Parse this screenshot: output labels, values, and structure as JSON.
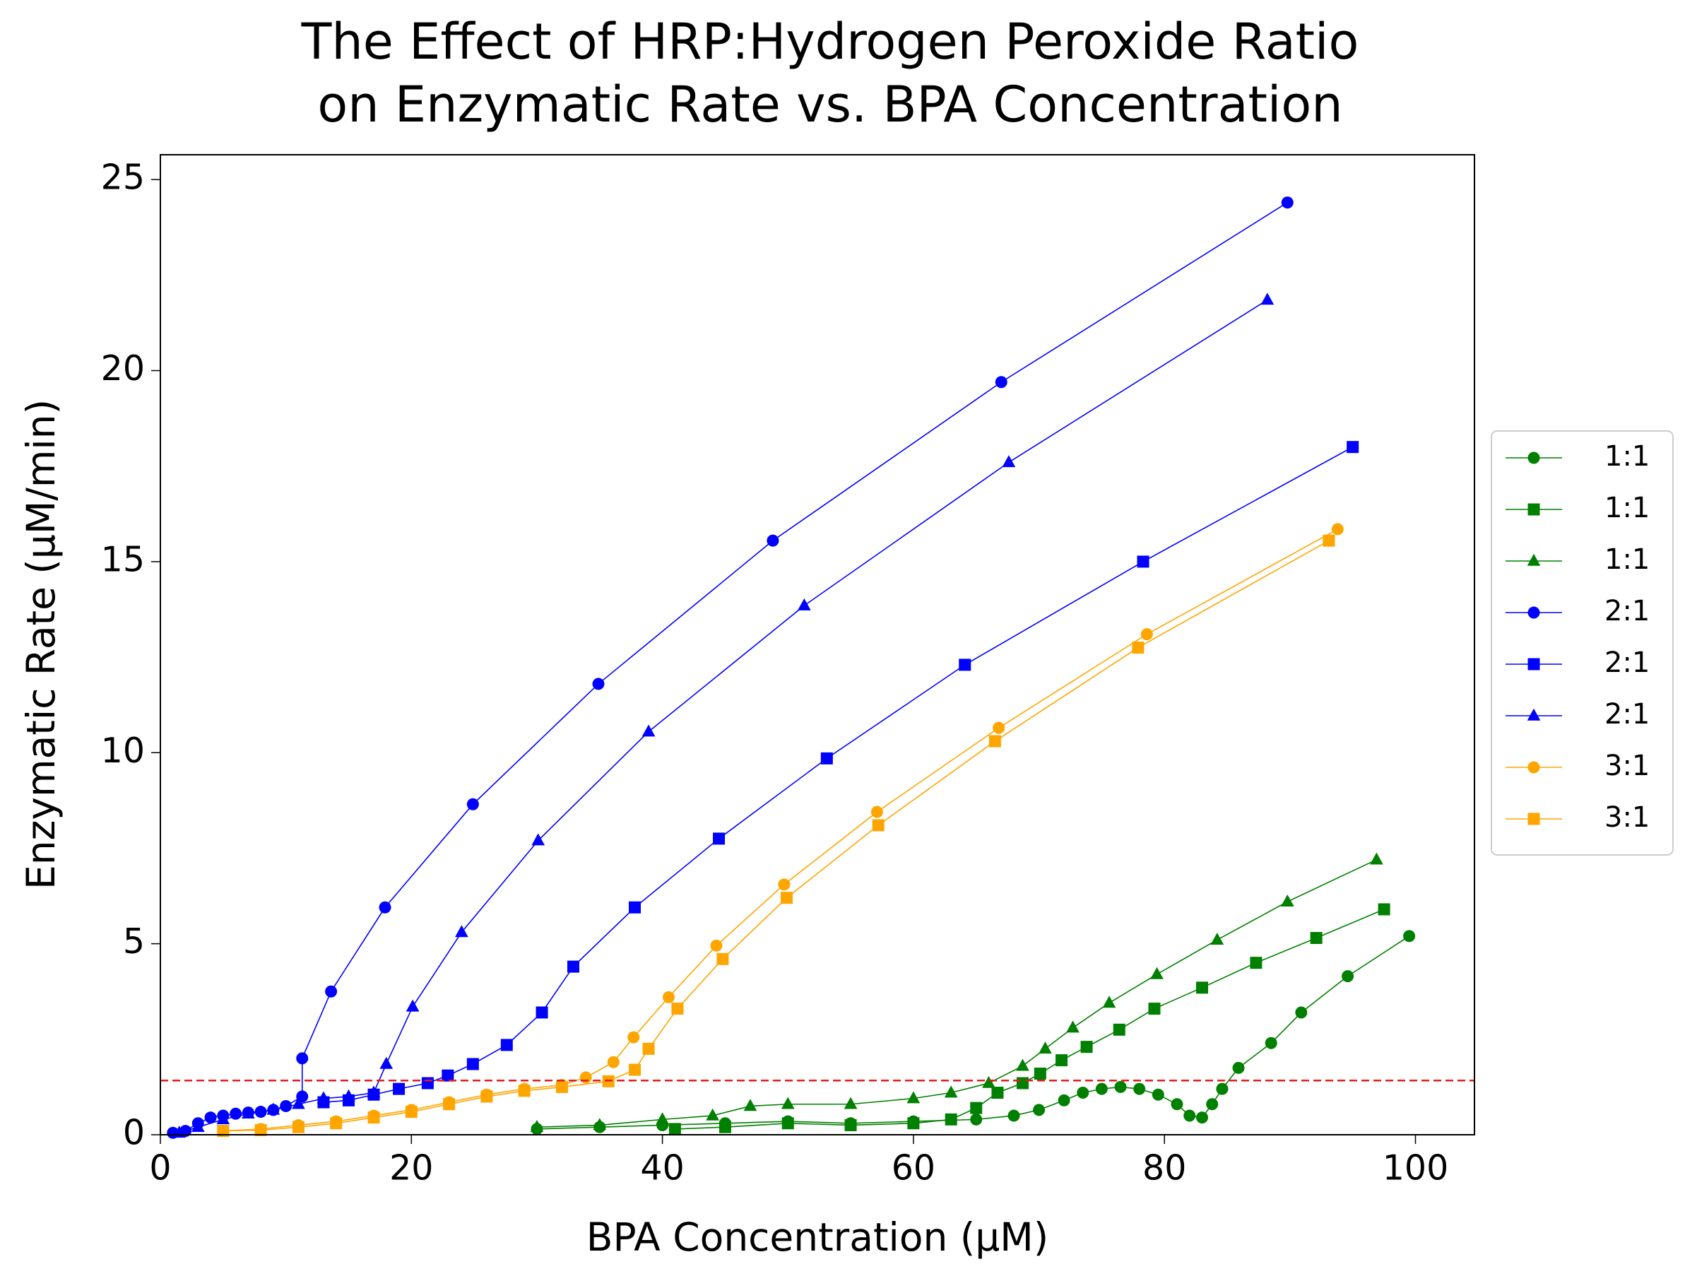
{
  "chart_data": {
    "type": "line",
    "title": "The Effect of HRP:Hydrogen Peroxide Ratio\non Enzymatic Rate vs. BPA Concentration",
    "x_label": "BPA Concentration (µM)",
    "y_label": "Enzymatic Rate (µM/min)",
    "xlim": [
      0,
      104.7
    ],
    "ylim": [
      0,
      25.65
    ],
    "xticks": [
      0,
      20,
      40,
      60,
      80,
      100
    ],
    "yticks": [
      0,
      5,
      10,
      15,
      20,
      25
    ],
    "hline": {
      "value": 1.42,
      "color": "#e41a1c"
    },
    "legend": "outside-right",
    "series": [
      {
        "name": "1:1",
        "color": "#008000",
        "marker": "circle",
        "x": [
          30,
          35,
          40,
          45,
          50,
          55,
          60,
          65,
          68,
          70,
          72,
          73.5,
          75,
          76.5,
          78,
          79.5,
          81,
          82,
          83,
          83.8,
          84.6,
          85.9,
          88.5,
          90.9,
          94.6,
          99.5
        ],
        "values": [
          0.15,
          0.2,
          0.25,
          0.3,
          0.35,
          0.3,
          0.35,
          0.4,
          0.5,
          0.65,
          0.9,
          1.1,
          1.2,
          1.25,
          1.2,
          1.05,
          0.8,
          0.5,
          0.45,
          0.8,
          1.2,
          1.75,
          2.4,
          3.2,
          4.15,
          5.2
        ]
      },
      {
        "name": "1:1",
        "color": "#008000",
        "marker": "square",
        "x": [
          41,
          45,
          50,
          55,
          60,
          63,
          65,
          66.7,
          68.7,
          70.1,
          71.8,
          73.8,
          76.4,
          79.2,
          83.0,
          87.3,
          92.1,
          97.5
        ],
        "values": [
          0.15,
          0.2,
          0.3,
          0.25,
          0.3,
          0.4,
          0.7,
          1.1,
          1.35,
          1.6,
          1.95,
          2.3,
          2.75,
          3.3,
          3.85,
          4.5,
          5.15,
          5.9
        ]
      },
      {
        "name": "1:1",
        "color": "#008000",
        "marker": "triangle",
        "x": [
          30,
          35,
          40,
          44,
          47,
          50,
          55,
          60,
          63,
          66,
          68.7,
          70.5,
          72.7,
          75.6,
          79.4,
          84.2,
          89.8,
          96.9
        ],
        "values": [
          0.2,
          0.25,
          0.4,
          0.5,
          0.75,
          0.8,
          0.8,
          0.95,
          1.1,
          1.35,
          1.8,
          2.25,
          2.8,
          3.45,
          4.2,
          5.1,
          6.1,
          7.2
        ]
      },
      {
        "name": "2:1",
        "color": "#0000ff",
        "marker": "circle",
        "x": [
          1,
          2,
          3,
          4,
          5,
          6,
          7,
          8,
          9,
          10,
          11.3,
          11.3,
          13.6,
          17.9,
          24.9,
          34.9,
          48.8,
          67.0,
          89.8
        ],
        "values": [
          0.05,
          0.1,
          0.3,
          0.45,
          0.5,
          0.55,
          0.58,
          0.6,
          0.65,
          0.75,
          1.0,
          2.0,
          3.75,
          5.95,
          8.65,
          11.8,
          15.55,
          19.7,
          24.4
        ]
      },
      {
        "name": "2:1",
        "color": "#0000ff",
        "marker": "square",
        "x": [
          13,
          15,
          17,
          19,
          21.3,
          22.9,
          24.9,
          27.6,
          30.4,
          32.9,
          37.8,
          44.5,
          53.1,
          64.1,
          78.3,
          95.0
        ],
        "values": [
          0.85,
          0.9,
          1.05,
          1.2,
          1.35,
          1.55,
          1.85,
          2.35,
          3.2,
          4.4,
          5.95,
          7.75,
          9.85,
          12.3,
          15.0,
          18.0
        ]
      },
      {
        "name": "2:1",
        "color": "#0000ff",
        "marker": "triangle",
        "x": [
          1.5,
          3,
          5,
          7,
          9,
          11,
          13,
          15,
          17,
          18,
          20.1,
          24,
          30.1,
          38.9,
          51.3,
          67.6,
          88.2
        ],
        "values": [
          0.05,
          0.2,
          0.4,
          0.55,
          0.65,
          0.8,
          0.95,
          1.0,
          1.1,
          1.85,
          3.35,
          5.3,
          7.7,
          10.55,
          13.85,
          17.6,
          21.85
        ]
      },
      {
        "name": "3:1",
        "color": "#ffa500",
        "marker": "circle",
        "x": [
          5,
          8,
          11,
          14,
          17,
          20,
          23,
          26,
          29,
          32,
          33.9,
          36.1,
          37.7,
          40.5,
          44.3,
          49.7,
          57.1,
          66.8,
          78.6,
          93.8
        ],
        "values": [
          0.1,
          0.15,
          0.25,
          0.35,
          0.5,
          0.65,
          0.85,
          1.05,
          1.2,
          1.3,
          1.5,
          1.9,
          2.55,
          3.6,
          4.95,
          6.55,
          8.45,
          10.65,
          13.1,
          15.85
        ]
      },
      {
        "name": "3:1",
        "color": "#ffa500",
        "marker": "square",
        "x": [
          5,
          8,
          11,
          14,
          17,
          20,
          23,
          26,
          29,
          32,
          35.7,
          37.8,
          38.9,
          41.2,
          44.8,
          49.9,
          57.2,
          66.5,
          77.9,
          93.1
        ],
        "values": [
          0.1,
          0.12,
          0.2,
          0.3,
          0.45,
          0.6,
          0.8,
          1.0,
          1.15,
          1.25,
          1.4,
          1.7,
          2.25,
          3.3,
          4.6,
          6.2,
          8.1,
          10.3,
          12.75,
          15.55
        ]
      }
    ]
  }
}
